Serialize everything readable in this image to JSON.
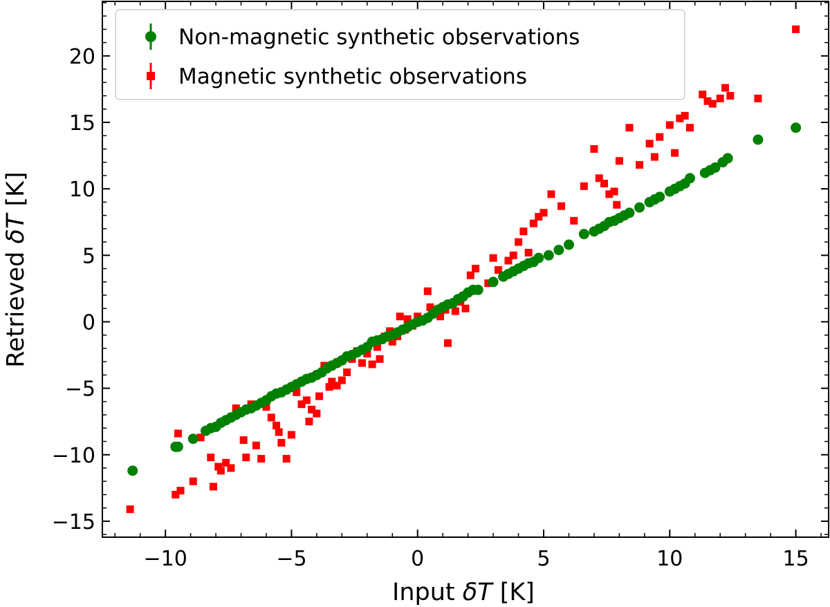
{
  "chart_data": {
    "type": "scatter",
    "title": "",
    "xlabel": {
      "prefix": "Input ",
      "symbol": "δT",
      "suffix": " [K]"
    },
    "ylabel": {
      "prefix": "Retrieved ",
      "symbol": "δT",
      "suffix": " [K]"
    },
    "xlim": [
      -12.5,
      16.3
    ],
    "ylim": [
      -16.2,
      24.1
    ],
    "xticks": [
      -10,
      -5,
      0,
      5,
      10,
      15
    ],
    "yticks": [
      -15,
      -10,
      -5,
      0,
      5,
      10,
      15,
      20
    ],
    "xtick_labels": [
      "−10",
      "−5",
      "0",
      "5",
      "10",
      "15"
    ],
    "ytick_labels": [
      "−15",
      "−10",
      "−5",
      "0",
      "5",
      "10",
      "15",
      "20"
    ],
    "legend_position": "top-left",
    "series": [
      {
        "name": "Non-magnetic synthetic observations",
        "color": "#008000",
        "marker": "circle",
        "points": [
          [
            -11.3,
            -11.2
          ],
          [
            -9.6,
            -9.4
          ],
          [
            -9.5,
            -9.4
          ],
          [
            -8.9,
            -8.8
          ],
          [
            -8.4,
            -8.2
          ],
          [
            -8.2,
            -8.0
          ],
          [
            -8.0,
            -7.9
          ],
          [
            -7.8,
            -7.6
          ],
          [
            -7.6,
            -7.4
          ],
          [
            -7.4,
            -7.2
          ],
          [
            -7.2,
            -7.0
          ],
          [
            -7.0,
            -6.8
          ],
          [
            -6.8,
            -6.6
          ],
          [
            -6.6,
            -6.5
          ],
          [
            -6.4,
            -6.3
          ],
          [
            -6.2,
            -6.1
          ],
          [
            -6.0,
            -5.9
          ],
          [
            -5.8,
            -5.6
          ],
          [
            -5.6,
            -5.4
          ],
          [
            -5.4,
            -5.3
          ],
          [
            -5.2,
            -5.1
          ],
          [
            -5.0,
            -4.9
          ],
          [
            -4.8,
            -4.7
          ],
          [
            -4.6,
            -4.5
          ],
          [
            -4.4,
            -4.3
          ],
          [
            -4.2,
            -4.2
          ],
          [
            -4.0,
            -4.0
          ],
          [
            -3.8,
            -3.8
          ],
          [
            -3.6,
            -3.5
          ],
          [
            -3.4,
            -3.3
          ],
          [
            -3.2,
            -3.1
          ],
          [
            -3.0,
            -2.9
          ],
          [
            -2.8,
            -2.6
          ],
          [
            -2.6,
            -2.5
          ],
          [
            -2.4,
            -2.3
          ],
          [
            -2.2,
            -2.1
          ],
          [
            -2.0,
            -1.9
          ],
          [
            -1.8,
            -1.5
          ],
          [
            -1.6,
            -1.4
          ],
          [
            -1.4,
            -1.3
          ],
          [
            -1.2,
            -1.1
          ],
          [
            -1.0,
            -1.0
          ],
          [
            -0.8,
            -0.8
          ],
          [
            -0.6,
            -0.6
          ],
          [
            -0.4,
            -0.4
          ],
          [
            -0.2,
            -0.2
          ],
          [
            0.0,
            0.0
          ],
          [
            0.2,
            0.1
          ],
          [
            0.4,
            0.3
          ],
          [
            0.6,
            0.6
          ],
          [
            0.8,
            0.9
          ],
          [
            1.0,
            1.1
          ],
          [
            1.2,
            1.3
          ],
          [
            1.4,
            1.4
          ],
          [
            1.6,
            1.7
          ],
          [
            1.8,
            1.9
          ],
          [
            2.0,
            2.2
          ],
          [
            2.2,
            2.4
          ],
          [
            2.4,
            2.4
          ],
          [
            3.0,
            3.0
          ],
          [
            3.4,
            3.4
          ],
          [
            3.6,
            3.6
          ],
          [
            3.8,
            3.8
          ],
          [
            4.0,
            4.0
          ],
          [
            4.2,
            4.2
          ],
          [
            4.4,
            4.4
          ],
          [
            4.6,
            4.5
          ],
          [
            4.8,
            4.8
          ],
          [
            5.2,
            5.0
          ],
          [
            5.6,
            5.4
          ],
          [
            6.0,
            5.8
          ],
          [
            6.6,
            6.6
          ],
          [
            7.0,
            6.8
          ],
          [
            7.2,
            7.0
          ],
          [
            7.4,
            7.2
          ],
          [
            7.6,
            7.5
          ],
          [
            7.8,
            7.6
          ],
          [
            8.0,
            7.8
          ],
          [
            8.2,
            8.0
          ],
          [
            8.4,
            8.2
          ],
          [
            8.8,
            8.6
          ],
          [
            9.2,
            9.0
          ],
          [
            9.4,
            9.2
          ],
          [
            9.6,
            9.4
          ],
          [
            10.0,
            9.8
          ],
          [
            10.2,
            10.0
          ],
          [
            10.4,
            10.2
          ],
          [
            10.6,
            10.4
          ],
          [
            10.8,
            10.8
          ],
          [
            11.4,
            11.2
          ],
          [
            11.6,
            11.4
          ],
          [
            11.8,
            11.6
          ],
          [
            12.1,
            12.0
          ],
          [
            12.3,
            12.3
          ],
          [
            13.5,
            13.7
          ],
          [
            15.0,
            14.6
          ]
        ]
      },
      {
        "name": "Magnetic synthetic observations",
        "color": "#ff0000",
        "marker": "square",
        "points": [
          [
            -11.4,
            -14.1
          ],
          [
            -9.6,
            -13.0
          ],
          [
            -9.4,
            -12.7
          ],
          [
            -9.5,
            -8.4
          ],
          [
            -8.9,
            -12.0
          ],
          [
            -8.6,
            -8.7
          ],
          [
            -8.2,
            -10.2
          ],
          [
            -8.1,
            -12.4
          ],
          [
            -7.9,
            -10.9
          ],
          [
            -7.8,
            -11.2
          ],
          [
            -7.6,
            -10.6
          ],
          [
            -7.4,
            -11.0
          ],
          [
            -7.2,
            -6.5
          ],
          [
            -6.9,
            -8.9
          ],
          [
            -6.8,
            -10.2
          ],
          [
            -6.6,
            -6.2
          ],
          [
            -6.4,
            -9.3
          ],
          [
            -6.2,
            -10.3
          ],
          [
            -6.0,
            -6.4
          ],
          [
            -5.8,
            -7.2
          ],
          [
            -5.6,
            -7.8
          ],
          [
            -5.5,
            -8.3
          ],
          [
            -5.4,
            -9.1
          ],
          [
            -5.2,
            -10.3
          ],
          [
            -5.0,
            -8.5
          ],
          [
            -4.8,
            -5.3
          ],
          [
            -4.6,
            -6.2
          ],
          [
            -4.4,
            -5.9
          ],
          [
            -4.3,
            -7.5
          ],
          [
            -4.2,
            -6.6
          ],
          [
            -4.0,
            -6.9
          ],
          [
            -3.9,
            -5.6
          ],
          [
            -3.7,
            -3.3
          ],
          [
            -3.5,
            -4.9
          ],
          [
            -3.4,
            -4.5
          ],
          [
            -3.2,
            -4.8
          ],
          [
            -3.0,
            -4.4
          ],
          [
            -2.8,
            -3.8
          ],
          [
            -2.6,
            -2.8
          ],
          [
            -2.4,
            -2.2
          ],
          [
            -2.2,
            -3.1
          ],
          [
            -2.0,
            -2.4
          ],
          [
            -1.8,
            -3.2
          ],
          [
            -1.6,
            -1.9
          ],
          [
            -1.5,
            -2.8
          ],
          [
            -1.3,
            -1.1
          ],
          [
            -1.1,
            -0.7
          ],
          [
            -1.0,
            -1.5
          ],
          [
            -0.8,
            -1.1
          ],
          [
            -0.7,
            0.4
          ],
          [
            -0.5,
            -0.6
          ],
          [
            -0.4,
            0.2
          ],
          [
            -0.2,
            -0.3
          ],
          [
            0.0,
            0.4
          ],
          [
            0.2,
            0.1
          ],
          [
            0.4,
            2.3
          ],
          [
            0.5,
            1.1
          ],
          [
            0.7,
            0.7
          ],
          [
            0.9,
            0.4
          ],
          [
            1.1,
            0.9
          ],
          [
            1.2,
            -1.6
          ],
          [
            1.5,
            0.8
          ],
          [
            1.7,
            1.5
          ],
          [
            1.9,
            1.0
          ],
          [
            2.1,
            3.5
          ],
          [
            2.3,
            4.0
          ],
          [
            2.8,
            2.9
          ],
          [
            3.0,
            4.8
          ],
          [
            3.2,
            3.9
          ],
          [
            3.4,
            3.4
          ],
          [
            3.6,
            4.6
          ],
          [
            3.8,
            5.0
          ],
          [
            4.0,
            6.0
          ],
          [
            4.2,
            6.8
          ],
          [
            4.4,
            5.2
          ],
          [
            4.6,
            7.4
          ],
          [
            4.8,
            7.9
          ],
          [
            5.0,
            8.2
          ],
          [
            5.3,
            9.6
          ],
          [
            5.7,
            8.7
          ],
          [
            6.2,
            7.6
          ],
          [
            6.6,
            10.2
          ],
          [
            7.0,
            13.0
          ],
          [
            7.2,
            10.8
          ],
          [
            7.4,
            10.4
          ],
          [
            7.6,
            9.6
          ],
          [
            7.8,
            9.8
          ],
          [
            7.9,
            8.8
          ],
          [
            8.0,
            12.1
          ],
          [
            8.4,
            14.6
          ],
          [
            8.8,
            11.8
          ],
          [
            9.2,
            13.4
          ],
          [
            9.4,
            12.4
          ],
          [
            9.6,
            13.9
          ],
          [
            10.0,
            14.8
          ],
          [
            10.2,
            12.7
          ],
          [
            10.4,
            15.3
          ],
          [
            10.6,
            15.5
          ],
          [
            10.8,
            14.6
          ],
          [
            11.3,
            17.1
          ],
          [
            11.5,
            16.6
          ],
          [
            11.7,
            16.4
          ],
          [
            12.0,
            16.8
          ],
          [
            12.2,
            17.6
          ],
          [
            12.4,
            17.0
          ],
          [
            13.5,
            16.8
          ],
          [
            15.0,
            22.0
          ]
        ]
      }
    ]
  }
}
